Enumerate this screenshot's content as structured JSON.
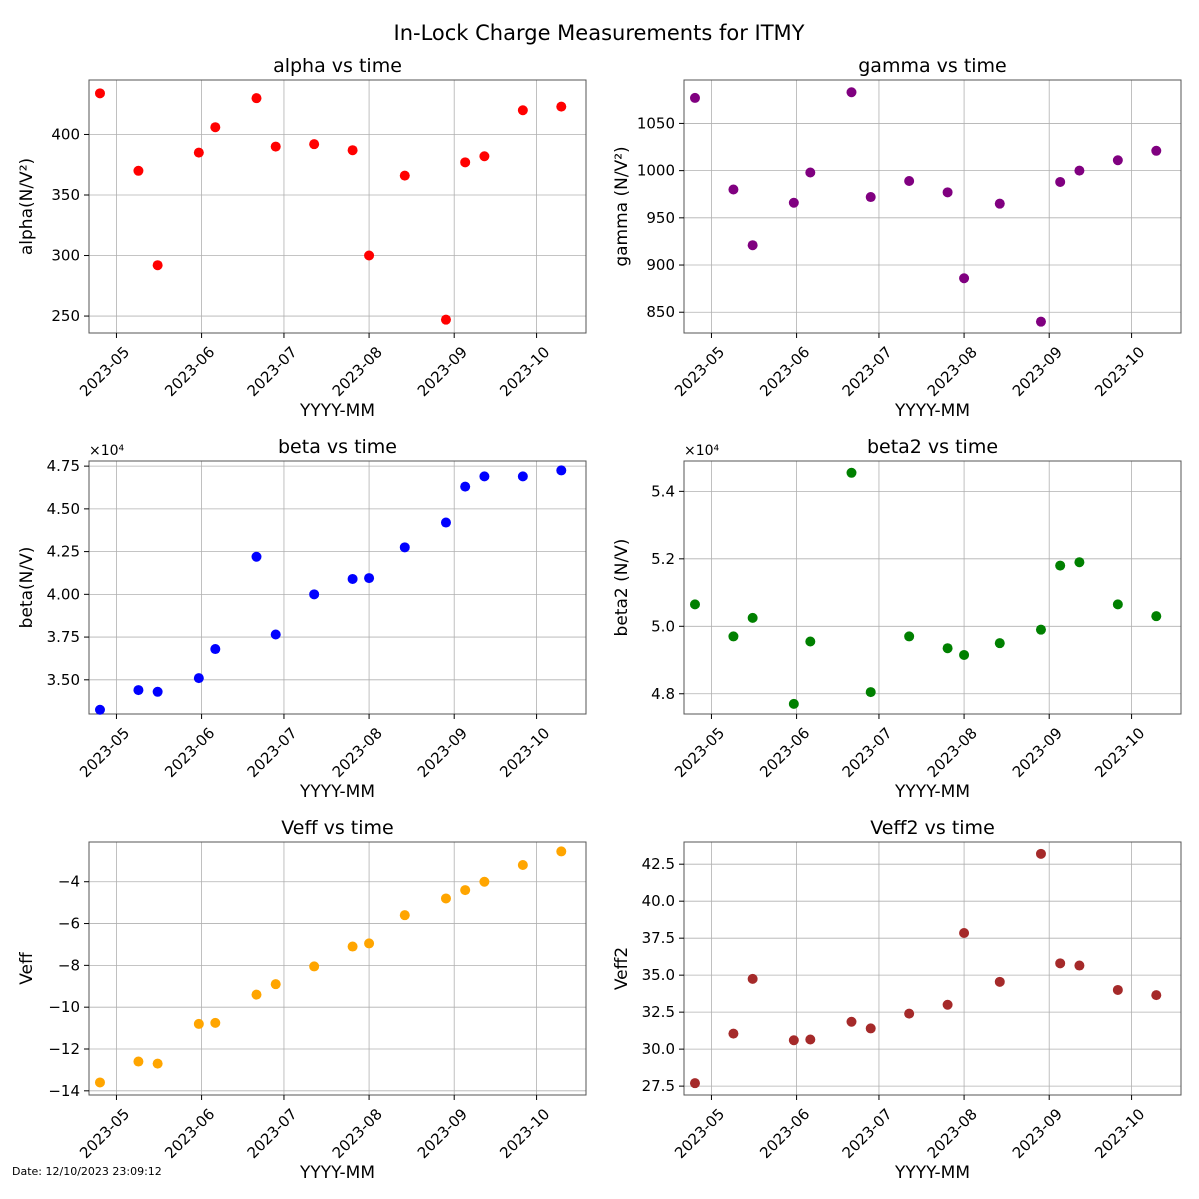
{
  "figure": {
    "suptitle": "In-Lock Charge Measurements for ITMY",
    "footer": "Date: 12/10/2023 23:09:12"
  },
  "x_axis": {
    "tick_values": [
      "2023-05-01",
      "2023-06-01",
      "2023-07-01",
      "2023-08-01",
      "2023-09-01",
      "2023-10-01"
    ],
    "tick_labels": [
      "2023-05",
      "2023-06",
      "2023-07",
      "2023-08",
      "2023-09",
      "2023-10"
    ]
  },
  "chart_data": [
    {
      "type": "scatter",
      "title": "alpha vs time",
      "xlabel": "YYYY-MM",
      "ylabel": "alpha(N/V²)",
      "color": "#ff0000",
      "xlim": [
        "2023-04-21",
        "2023-10-19"
      ],
      "ylim": [
        236,
        445
      ],
      "yticks": [
        250,
        300,
        350,
        400
      ],
      "ytick_labels": [
        "250",
        "300",
        "350",
        "400"
      ],
      "exponent_label": "",
      "grid": true,
      "x": [
        "2023-04-25",
        "2023-05-09",
        "2023-05-16",
        "2023-05-31",
        "2023-06-06",
        "2023-06-21",
        "2023-06-28",
        "2023-07-12",
        "2023-07-26",
        "2023-08-01",
        "2023-08-14",
        "2023-08-29",
        "2023-09-05",
        "2023-09-12",
        "2023-09-26",
        "2023-10-10"
      ],
      "y": [
        434,
        370,
        292,
        385,
        406,
        430,
        390,
        392,
        387,
        300,
        366,
        247,
        377,
        382,
        420,
        423
      ]
    },
    {
      "type": "scatter",
      "title": "gamma vs time",
      "xlabel": "YYYY-MM",
      "ylabel": "gamma (N/V²)",
      "color": "#800080",
      "xlim": [
        "2023-04-21",
        "2023-10-19"
      ],
      "ylim": [
        828,
        1096
      ],
      "yticks": [
        850,
        900,
        950,
        1000,
        1050
      ],
      "ytick_labels": [
        "850",
        "900",
        "950",
        "1000",
        "1050"
      ],
      "exponent_label": "",
      "grid": true,
      "x": [
        "2023-04-25",
        "2023-05-09",
        "2023-05-16",
        "2023-05-31",
        "2023-06-06",
        "2023-06-21",
        "2023-06-28",
        "2023-07-12",
        "2023-07-26",
        "2023-08-01",
        "2023-08-14",
        "2023-08-29",
        "2023-09-05",
        "2023-09-12",
        "2023-09-26",
        "2023-10-10"
      ],
      "y": [
        1077,
        980,
        921,
        966,
        998,
        1083,
        972,
        989,
        977,
        886,
        965,
        840,
        988,
        1000,
        1011,
        1021
      ]
    },
    {
      "type": "scatter",
      "title": "beta vs time",
      "xlabel": "YYYY-MM",
      "ylabel": "beta(N/V)",
      "color": "#0000ff",
      "xlim": [
        "2023-04-21",
        "2023-10-19"
      ],
      "ylim": [
        33000,
        47800
      ],
      "yticks": [
        35000,
        37500,
        40000,
        42500,
        45000,
        47500
      ],
      "ytick_labels": [
        "3.50",
        "3.75",
        "4.00",
        "4.25",
        "4.50",
        "4.75"
      ],
      "exponent_label": "×10⁴",
      "grid": true,
      "x": [
        "2023-04-25",
        "2023-05-09",
        "2023-05-16",
        "2023-05-31",
        "2023-06-06",
        "2023-06-21",
        "2023-06-28",
        "2023-07-12",
        "2023-07-26",
        "2023-08-01",
        "2023-08-14",
        "2023-08-29",
        "2023-09-05",
        "2023-09-12",
        "2023-09-26",
        "2023-10-10"
      ],
      "y": [
        33250,
        34400,
        34300,
        35100,
        36800,
        42200,
        37650,
        40000,
        40900,
        40950,
        42750,
        44200,
        46300,
        46900,
        46900,
        47250
      ]
    },
    {
      "type": "scatter",
      "title": "beta2 vs time",
      "xlabel": "YYYY-MM",
      "ylabel": "beta2 (N/V)",
      "color": "#008000",
      "xlim": [
        "2023-04-21",
        "2023-10-19"
      ],
      "ylim": [
        47400,
        54900
      ],
      "yticks": [
        48000,
        50000,
        52000,
        54000
      ],
      "ytick_labels": [
        "4.8",
        "5.0",
        "5.2",
        "5.4"
      ],
      "exponent_label": "×10⁴",
      "grid": true,
      "x": [
        "2023-04-25",
        "2023-05-09",
        "2023-05-16",
        "2023-05-31",
        "2023-06-06",
        "2023-06-21",
        "2023-06-28",
        "2023-07-12",
        "2023-07-26",
        "2023-08-01",
        "2023-08-14",
        "2023-08-29",
        "2023-09-05",
        "2023-09-12",
        "2023-09-26",
        "2023-10-10"
      ],
      "y": [
        50650,
        49700,
        50250,
        47700,
        49550,
        54550,
        48050,
        49700,
        49350,
        49150,
        49500,
        49900,
        51800,
        51900,
        50650,
        50300
      ]
    },
    {
      "type": "scatter",
      "title": "Veff vs time",
      "xlabel": "YYYY-MM",
      "ylabel": "Veff",
      "color": "#ffa500",
      "xlim": [
        "2023-04-21",
        "2023-10-19"
      ],
      "ylim": [
        -14.2,
        -2.1
      ],
      "yticks": [
        -14,
        -12,
        -10,
        -8,
        -6,
        -4
      ],
      "ytick_labels": [
        "−14",
        "−12",
        "−10",
        "−8",
        "−6",
        "−4"
      ],
      "exponent_label": "",
      "grid": true,
      "x": [
        "2023-04-25",
        "2023-05-09",
        "2023-05-16",
        "2023-05-31",
        "2023-06-06",
        "2023-06-21",
        "2023-06-28",
        "2023-07-12",
        "2023-07-26",
        "2023-08-01",
        "2023-08-14",
        "2023-08-29",
        "2023-09-05",
        "2023-09-12",
        "2023-09-26",
        "2023-10-10"
      ],
      "y": [
        -13.6,
        -12.6,
        -12.7,
        -10.8,
        -10.75,
        -9.4,
        -8.9,
        -8.05,
        -7.1,
        -6.95,
        -5.6,
        -4.8,
        -4.4,
        -4.0,
        -3.2,
        -2.55
      ]
    },
    {
      "type": "scatter",
      "title": "Veff2 vs time",
      "xlabel": "YYYY-MM",
      "ylabel": "Veff2",
      "color": "#a52a2a",
      "xlim": [
        "2023-04-21",
        "2023-10-19"
      ],
      "ylim": [
        26.9,
        44.0
      ],
      "yticks": [
        27.5,
        30.0,
        32.5,
        35.0,
        37.5,
        40.0,
        42.5
      ],
      "ytick_labels": [
        "27.5",
        "30.0",
        "32.5",
        "35.0",
        "37.5",
        "40.0",
        "42.5"
      ],
      "exponent_label": "",
      "grid": true,
      "x": [
        "2023-04-25",
        "2023-05-09",
        "2023-05-16",
        "2023-05-31",
        "2023-06-06",
        "2023-06-21",
        "2023-06-28",
        "2023-07-12",
        "2023-07-26",
        "2023-08-01",
        "2023-08-14",
        "2023-08-29",
        "2023-09-05",
        "2023-09-12",
        "2023-09-26",
        "2023-10-10"
      ],
      "y": [
        27.7,
        31.05,
        34.75,
        30.6,
        30.65,
        31.85,
        31.4,
        32.4,
        33.0,
        37.85,
        34.55,
        43.2,
        35.8,
        35.65,
        34.0,
        33.65
      ]
    }
  ]
}
